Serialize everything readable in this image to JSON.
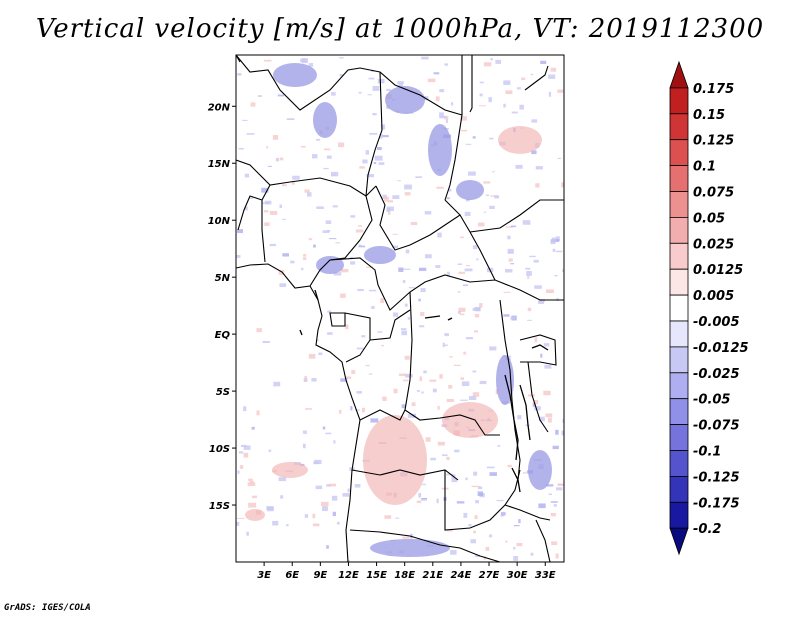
{
  "title": "Vertical velocity [m/s] at 1000hPa, VT: 2019112300",
  "footer": "GrADS: IGES/COLA",
  "map": {
    "lat_ticks": [
      {
        "label": "20N",
        "value": 20
      },
      {
        "label": "15N",
        "value": 15
      },
      {
        "label": "10N",
        "value": 10
      },
      {
        "label": "5N",
        "value": 5
      },
      {
        "label": "EQ",
        "value": 0
      },
      {
        "label": "5S",
        "value": -5
      },
      {
        "label": "10S",
        "value": -10
      },
      {
        "label": "15S",
        "value": -15
      }
    ],
    "lon_ticks": [
      {
        "label": "3E",
        "value": 3
      },
      {
        "label": "6E",
        "value": 6
      },
      {
        "label": "9E",
        "value": 9
      },
      {
        "label": "12E",
        "value": 12
      },
      {
        "label": "15E",
        "value": 15
      },
      {
        "label": "18E",
        "value": 18
      },
      {
        "label": "21E",
        "value": 21
      },
      {
        "label": "24E",
        "value": 24
      },
      {
        "label": "27E",
        "value": 27
      },
      {
        "label": "30E",
        "value": 30
      },
      {
        "label": "33E",
        "value": 33
      }
    ],
    "lat_range": [
      -20,
      24.5
    ],
    "lon_range": [
      0,
      35
    ]
  },
  "colorbar": {
    "levels": [
      "0.175",
      "0.15",
      "0.125",
      "0.1",
      "0.075",
      "0.05",
      "0.025",
      "0.0125",
      "0.005",
      "-0.005",
      "-0.0125",
      "-0.025",
      "-0.05",
      "-0.075",
      "-0.1",
      "-0.125",
      "-0.175",
      "-0.2"
    ],
    "colors": [
      "#a01010",
      "#c02020",
      "#d03535",
      "#dc5050",
      "#e47070",
      "#ec9090",
      "#f2aeae",
      "#f8cccc",
      "#fce6e6",
      "#ffffff",
      "#e6e6fc",
      "#c8c8f4",
      "#aeaef0",
      "#9090e8",
      "#7474dc",
      "#5454cc",
      "#3434b8",
      "#1818a0",
      "#0a0a80"
    ]
  }
}
